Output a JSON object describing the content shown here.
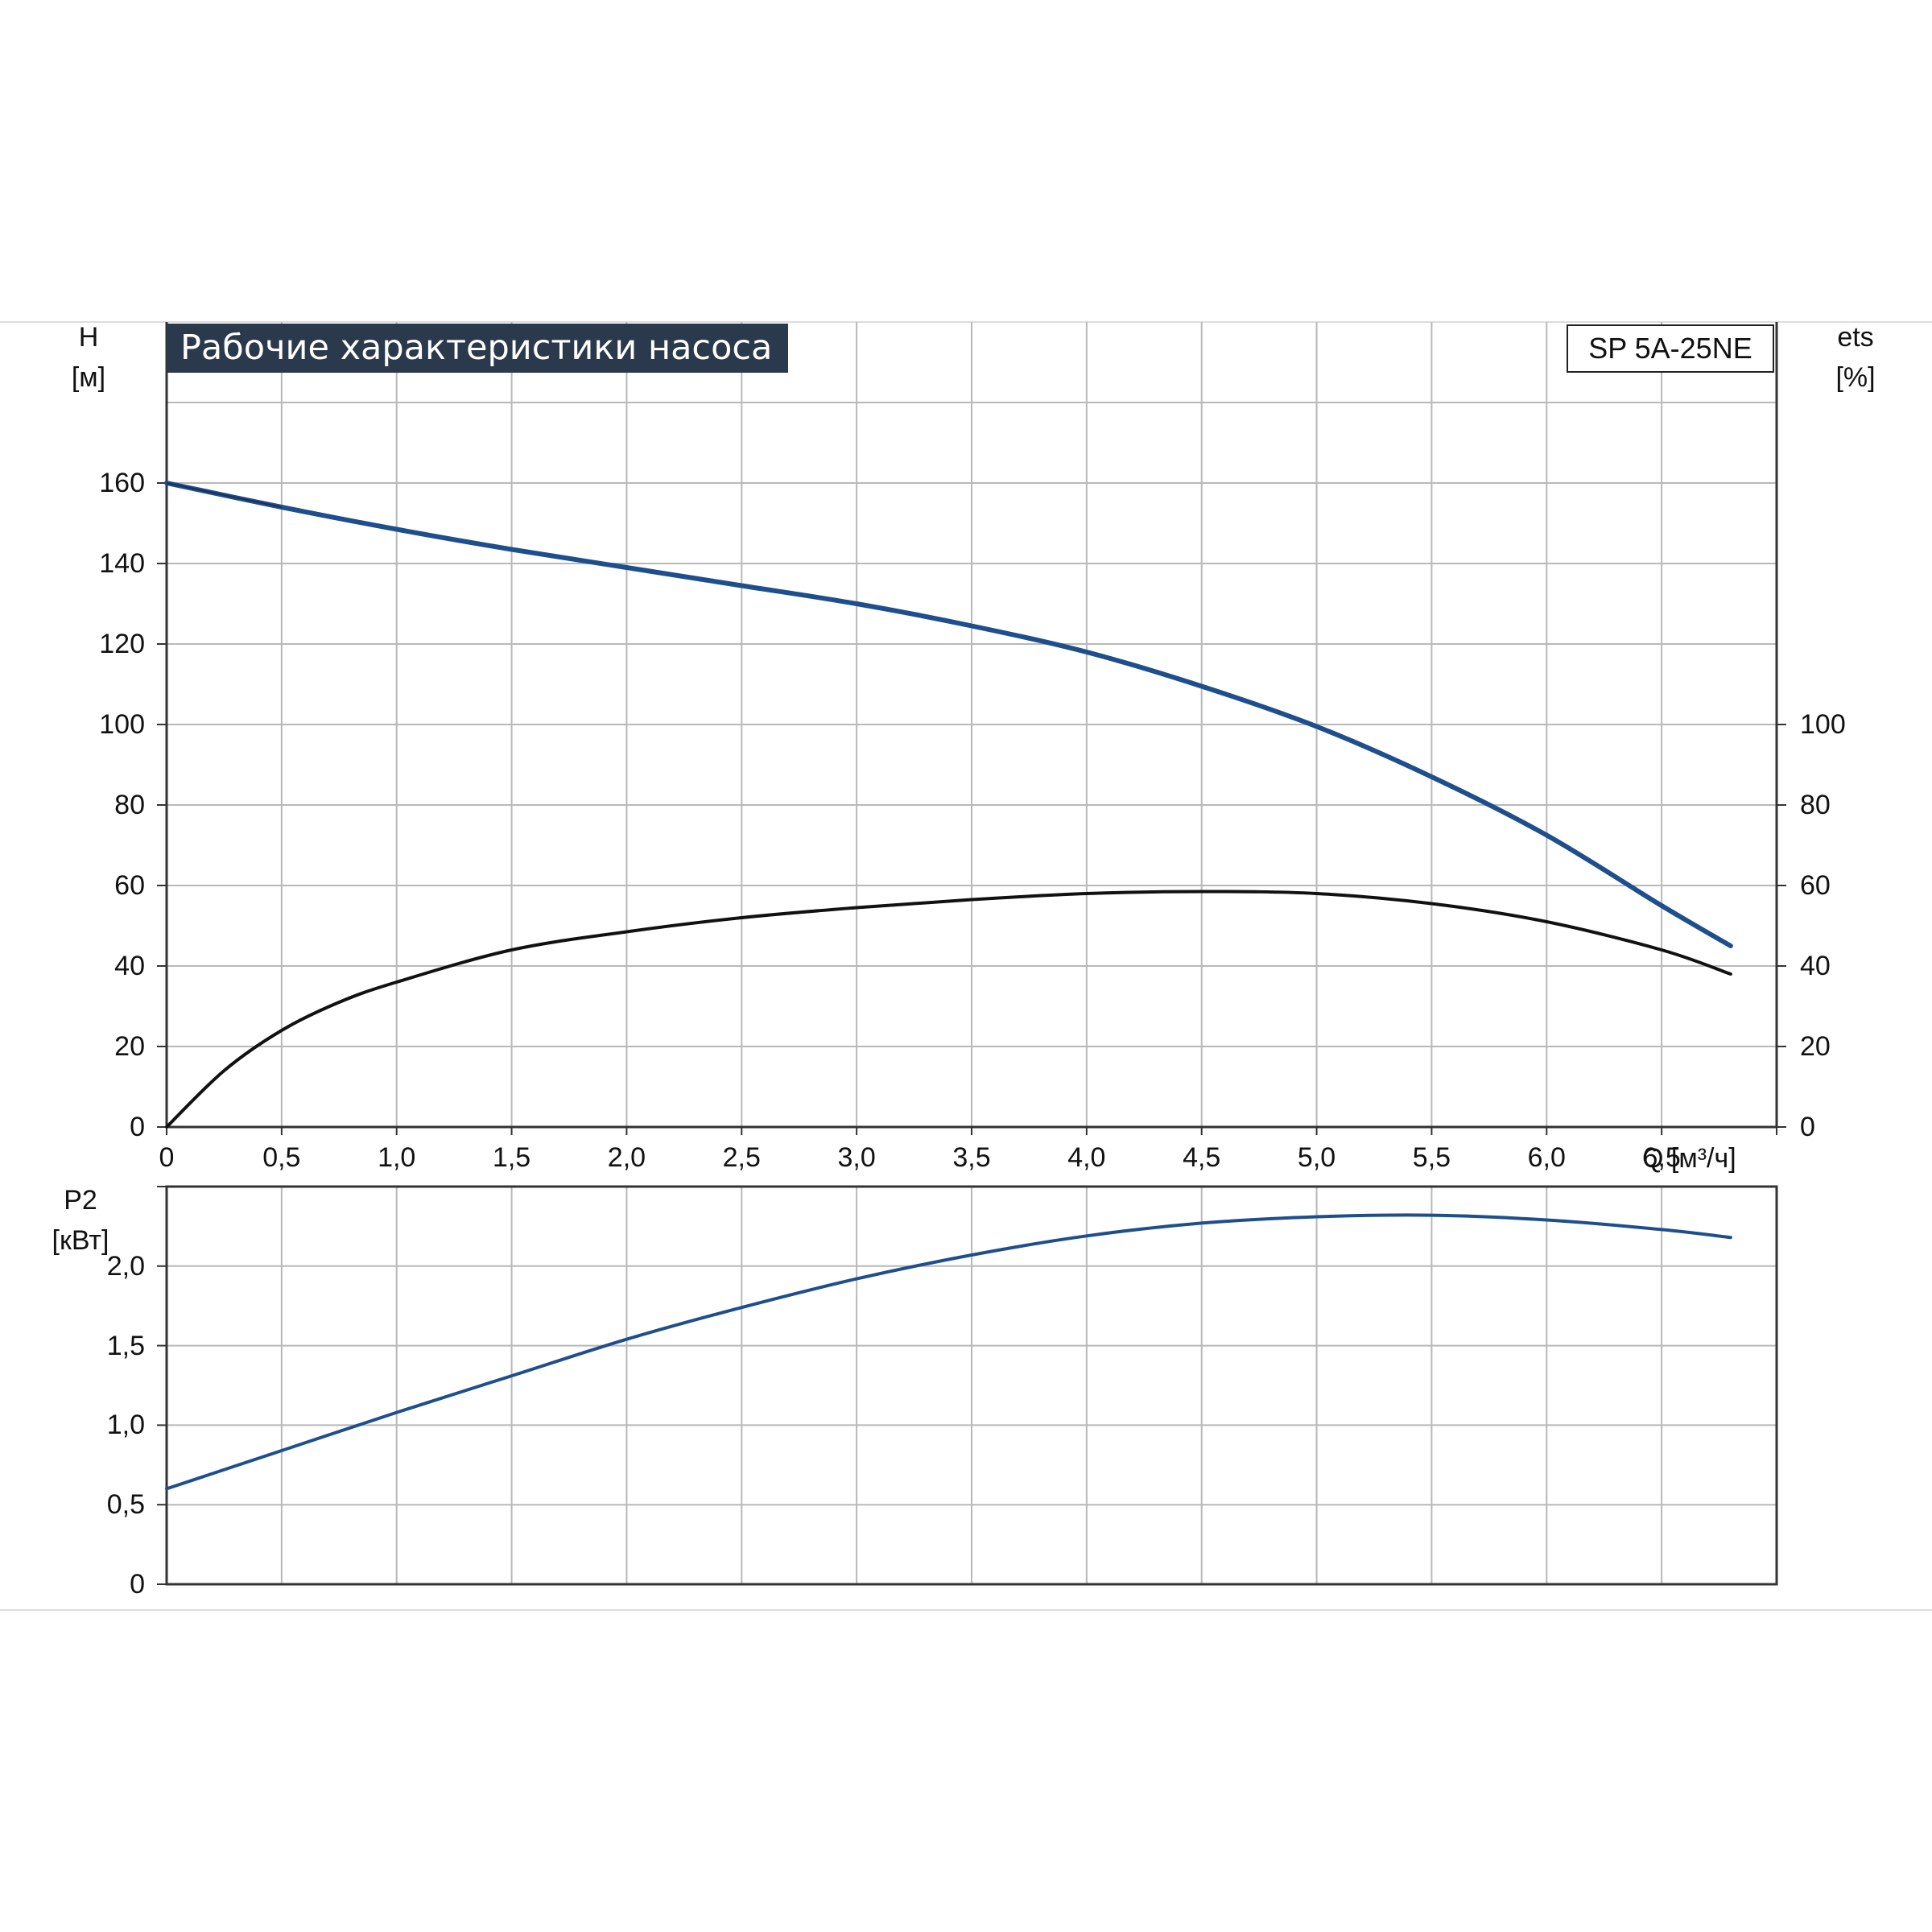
{
  "title": "Рабочие характеристики насоса",
  "model": "SP 5A-25NE",
  "colors": {
    "head": "#1f4e8c",
    "efficiency": "#111111",
    "power": "#1f4e8c",
    "grid": "#b8b8b8",
    "title_bg": "#2a3a4c"
  },
  "chart_data": [
    {
      "type": "line",
      "title": "Рабочие характеристики насоса",
      "ylabel_left": {
        "symbol": "H",
        "unit": "[м]"
      },
      "ylabel_right": {
        "symbol": "ets",
        "unit": "[%]"
      },
      "xlabel": "Q [м³/ч]",
      "xlim": [
        0,
        7.0
      ],
      "ylim": [
        0,
        200
      ],
      "ylim_right": [
        0,
        200
      ],
      "x_ticks": [
        "0",
        "0,5",
        "1,0",
        "1,5",
        "2,0",
        "2,5",
        "3,0",
        "3,5",
        "4,0",
        "4,5",
        "5,0",
        "5,5",
        "6,0",
        "6,5"
      ],
      "y_ticks": [
        "0",
        "20",
        "40",
        "60",
        "80",
        "100",
        "120",
        "140",
        "160"
      ],
      "y_ticks_right": [
        "0",
        "20",
        "40",
        "60",
        "80",
        "100"
      ],
      "grid": true,
      "series": [
        {
          "role": "head",
          "x": [
            0,
            0.5,
            1.0,
            1.5,
            2.0,
            2.5,
            3.0,
            3.5,
            4.0,
            4.5,
            5.0,
            5.5,
            6.0,
            6.5,
            6.8
          ],
          "y": [
            160,
            154,
            148.5,
            143.5,
            139,
            134.5,
            130,
            124.5,
            118,
            109.5,
            99.5,
            87,
            72.5,
            55,
            45
          ]
        },
        {
          "role": "efficiency",
          "x": [
            0,
            0.25,
            0.5,
            0.75,
            1.0,
            1.5,
            2.0,
            2.5,
            3.0,
            3.5,
            4.0,
            4.5,
            5.0,
            5.5,
            6.0,
            6.5,
            6.8
          ],
          "y": [
            0,
            14,
            24,
            31,
            36,
            44,
            48.5,
            52,
            54.5,
            56.5,
            58,
            58.5,
            58,
            55.5,
            51,
            44,
            38
          ]
        }
      ]
    },
    {
      "type": "line",
      "ylabel": {
        "symbol": "P2",
        "unit": "[кВт]"
      },
      "xlim": [
        0,
        7.0
      ],
      "ylim": [
        0,
        2.5
      ],
      "y_ticks": [
        "0",
        "0,5",
        "1,0",
        "1,5",
        "2,0"
      ],
      "grid": true,
      "series": [
        {
          "role": "power",
          "x": [
            0,
            0.5,
            1.0,
            1.5,
            2.0,
            2.5,
            3.0,
            3.5,
            4.0,
            4.5,
            5.0,
            5.5,
            6.0,
            6.5,
            6.8
          ],
          "y": [
            0.6,
            0.84,
            1.08,
            1.31,
            1.54,
            1.74,
            1.92,
            2.07,
            2.19,
            2.27,
            2.31,
            2.32,
            2.29,
            2.23,
            2.18
          ]
        }
      ]
    }
  ]
}
